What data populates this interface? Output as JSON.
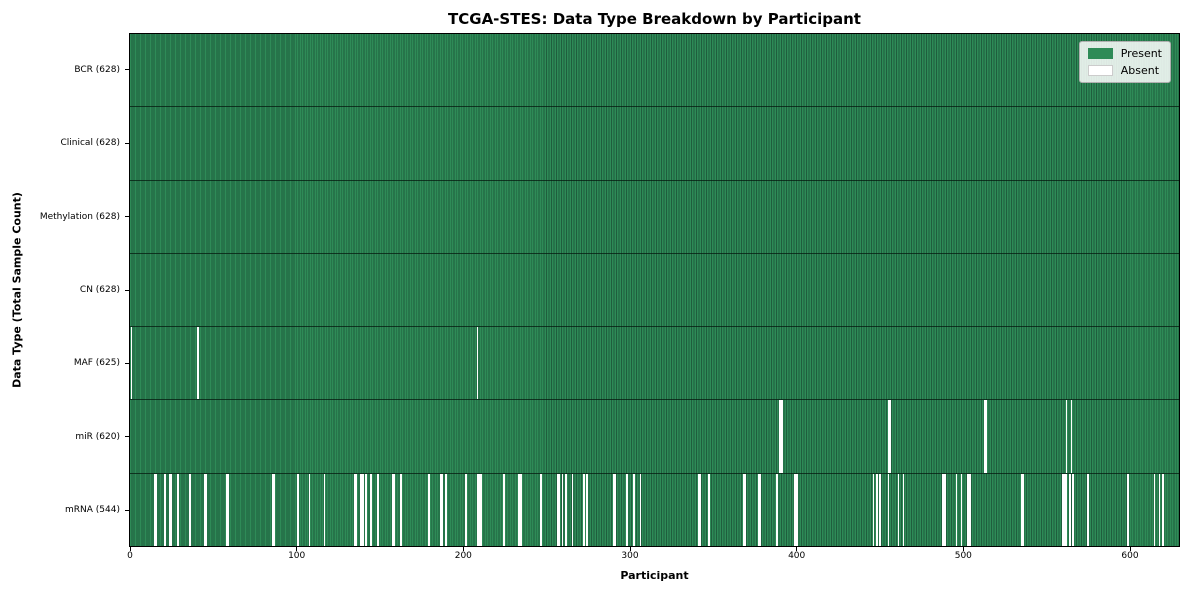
{
  "title": "TCGA-STES: Data Type Breakdown by Participant",
  "axes": {
    "xlabel": "Participant",
    "ylabel": "Data Type (Total Sample Count)"
  },
  "legend": {
    "items": [
      {
        "label": "Present",
        "color": "#2e8b57"
      },
      {
        "label": "Absent",
        "color": "#ffffff"
      }
    ]
  },
  "chart_data": {
    "type": "heatmap",
    "title": "TCGA-STES: Data Type Breakdown by Participant",
    "xlabel": "Participant",
    "ylabel": "Data Type (Total Sample Count)",
    "legend": [
      "Present",
      "Absent"
    ],
    "legend_position": "upper right",
    "grid": false,
    "x_ticks": [
      0,
      100,
      200,
      300,
      400,
      500,
      600
    ],
    "x_range": [
      -0.6,
      630
    ],
    "total_participants": 628,
    "colors": {
      "present": "#2e8b57",
      "present_edge": "#1f5e3d",
      "absent": "#ffffff"
    },
    "rows": [
      {
        "label": "BCR (628)",
        "data_type": "BCR",
        "present_count": 628,
        "absent_count": 0,
        "absent_participants": []
      },
      {
        "label": "Clinical (628)",
        "data_type": "Clinical",
        "present_count": 628,
        "absent_count": 0,
        "absent_participants": []
      },
      {
        "label": "Methylation (628)",
        "data_type": "Methylation",
        "present_count": 628,
        "absent_count": 0,
        "absent_participants": []
      },
      {
        "label": "CN (628)",
        "data_type": "CN",
        "present_count": 628,
        "absent_count": 0,
        "absent_participants": []
      },
      {
        "label": "MAF (625)",
        "data_type": "MAF",
        "present_count": 625,
        "absent_count": 3,
        "absent_participants": [
          0,
          40,
          208
        ]
      },
      {
        "label": "miR (620)",
        "data_type": "miR",
        "present_count": 620,
        "absent_count": 8,
        "absent_participants": [
          390,
          391,
          455,
          456,
          513,
          514,
          562,
          565
        ]
      },
      {
        "label": "mRNA (544)",
        "data_type": "mRNA",
        "present_count": 544,
        "absent_count": 84,
        "absent_participants": [
          14,
          15,
          20,
          23,
          24,
          28,
          35,
          44,
          45,
          57,
          58,
          85,
          86,
          100,
          107,
          116,
          134,
          135,
          138,
          139,
          141,
          144,
          148,
          157,
          158,
          162,
          179,
          186,
          187,
          189,
          201,
          208,
          209,
          210,
          224,
          233,
          234,
          246,
          256,
          257,
          259,
          261,
          265,
          272,
          274,
          290,
          291,
          298,
          302,
          306,
          341,
          342,
          347,
          368,
          369,
          377,
          378,
          388,
          399,
          400,
          446,
          448,
          450,
          455,
          461,
          464,
          488,
          489,
          496,
          499,
          503,
          504,
          535,
          536,
          560,
          561,
          562,
          564,
          566,
          575,
          599,
          615,
          618,
          620
        ]
      }
    ]
  }
}
